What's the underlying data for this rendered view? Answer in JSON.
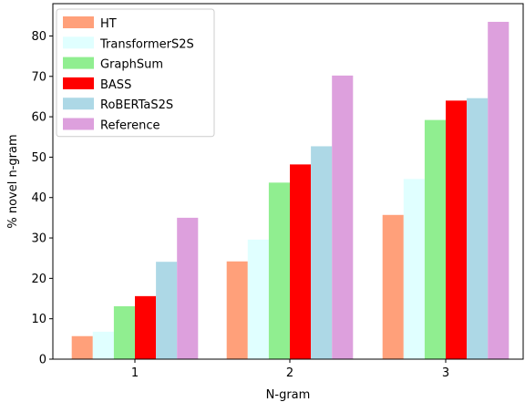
{
  "chart_data": {
    "type": "bar",
    "title": "",
    "xlabel": "N-gram",
    "ylabel": "% novel n-gram",
    "categories": [
      "1",
      "2",
      "3"
    ],
    "ylim": [
      0,
      88
    ],
    "yticks": [
      0,
      10,
      20,
      30,
      40,
      50,
      60,
      70,
      80
    ],
    "grid": false,
    "legend_position": "top-left",
    "series": [
      {
        "name": "HT",
        "color": "#ffa07a",
        "values": [
          5.7,
          24.2,
          35.7
        ]
      },
      {
        "name": "TransformerS2S",
        "color": "#e0ffff",
        "values": [
          6.8,
          29.6,
          44.6
        ]
      },
      {
        "name": "GraphSum",
        "color": "#90ee90",
        "values": [
          13.1,
          43.7,
          59.2
        ]
      },
      {
        "name": "BASS",
        "color": "#ff0000",
        "values": [
          15.6,
          48.2,
          64.0
        ]
      },
      {
        "name": "RoBERTaS2S",
        "color": "#add8e6",
        "values": [
          24.1,
          52.7,
          64.6
        ]
      },
      {
        "name": "Reference",
        "color": "#dda0dd",
        "values": [
          35.0,
          70.2,
          83.5
        ]
      }
    ]
  }
}
